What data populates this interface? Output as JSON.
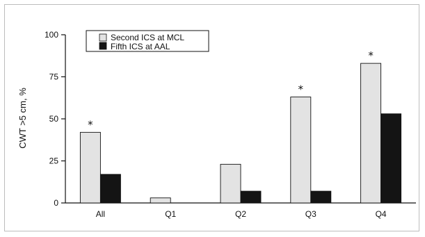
{
  "chart_data": {
    "type": "bar",
    "categories": [
      "All",
      "Q1",
      "Q2",
      "Q3",
      "Q4"
    ],
    "series": [
      {
        "name": "Second ICS at MCL",
        "values": [
          42,
          3,
          23,
          63,
          83
        ],
        "color": "#e3e3e3"
      },
      {
        "name": "Fifth ICS at AAL",
        "values": [
          17,
          0,
          7,
          7,
          53
        ],
        "color": "#141414"
      }
    ],
    "ylabel": "CWT >5 cm, %",
    "xlabel": "",
    "ylim": [
      0,
      100
    ],
    "yticks": [
      0,
      25,
      50,
      75,
      100
    ],
    "significance_marks": [
      {
        "category": "All",
        "symbol": "*"
      },
      {
        "category": "Q3",
        "symbol": "*"
      },
      {
        "category": "Q4",
        "symbol": "*"
      }
    ],
    "legend": {
      "placement": "top-left"
    },
    "grid": false
  }
}
